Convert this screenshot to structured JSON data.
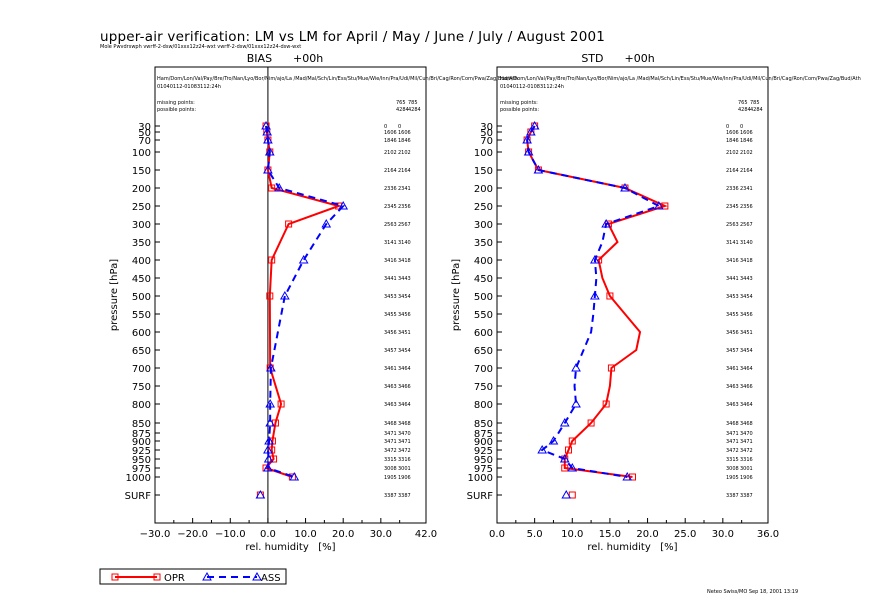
{
  "header": {
    "title": "upper-air verification: LM vs LM for April / May / June / July / August 2001",
    "subtitle": "Mole Pwvdrswph vwrff-2-dsw/01xxx12z24-wxt vwrff-2-dsw/01xxx12z24-dsw-wxt"
  },
  "footer": "Neteo Swiss/MO Sep 18, 2001 13:19",
  "legend": [
    {
      "label": "OPR",
      "color": "#ff0000",
      "marker": "square",
      "dash": "solid"
    },
    {
      "label": "ASS",
      "color": "#0000ff",
      "marker": "triangle",
      "dash": "dashed"
    }
  ],
  "chart_data": [
    {
      "type": "line",
      "title": "BIAS      +00h",
      "xlabel": "rel. humidity   [%]",
      "ylabel": "pressure  [hPa]",
      "xlim": [
        -30,
        42
      ],
      "xticks": [
        "−30.0",
        "−20.0",
        "−10.0",
        "0.0",
        "10.0",
        "20.0",
        "30.0",
        "42.0"
      ],
      "xtick_values": [
        -30,
        -20,
        -10,
        0,
        10,
        20,
        30,
        42
      ],
      "zero_line": true,
      "stations": "Ham/Dom/Lon/Val/Pay/Bre/Tro/Nan/Lyo/Bor/Nim/ajo/La /Mad/Mal/Sch/Lin/Ess/Stu/Mue/Wie/Inn/Pra/Udi/Mil/Cun/Bri/Cag/Ron/Com/Pwa/Zag/Bud/Ath",
      "period": "01040112-01083112:24h",
      "missing_label": "missing points:",
      "possible_label": "possible points:",
      "missing": [
        "765",
        "785"
      ],
      "possible": [
        "4284",
        "4284"
      ],
      "levels": [
        "30",
        "50",
        "70",
        "100",
        "150",
        "200",
        "250",
        "300",
        "350",
        "400",
        "450",
        "500",
        "550",
        "600",
        "650",
        "700",
        "750",
        "800",
        "850",
        "875",
        "900",
        "925",
        "950",
        "975",
        "1000",
        "SURF"
      ],
      "counts": [
        [
          "0",
          "0"
        ],
        [
          "1606",
          "1606"
        ],
        [
          "1846",
          "1846"
        ],
        [
          "2102",
          "2102"
        ],
        [
          "2164",
          "2164"
        ],
        [
          "2336",
          "2341"
        ],
        [
          "2345",
          "2356"
        ],
        [
          "2563",
          "2567"
        ],
        [
          "3141",
          "3140"
        ],
        [
          "3416",
          "3418"
        ],
        [
          "3441",
          "3443"
        ],
        [
          "3453",
          "3454"
        ],
        [
          "3455",
          "3456"
        ],
        [
          "3456",
          "3451"
        ],
        [
          "3457",
          "3454"
        ],
        [
          "3461",
          "3464"
        ],
        [
          "3463",
          "3466"
        ],
        [
          "3463",
          "3464"
        ],
        [
          "3468",
          "3468"
        ],
        [
          "3471",
          "3470"
        ],
        [
          "3471",
          "3471"
        ],
        [
          "3472",
          "3472"
        ],
        [
          "3315",
          "3316"
        ],
        [
          "3008",
          "3001"
        ],
        [
          "1905",
          "1906"
        ],
        [
          "3387",
          "3387"
        ]
      ],
      "series": [
        {
          "name": "OPR",
          "levels": [
            "30",
            "50",
            "70",
            "100",
            "150",
            "200",
            "250",
            "300",
            "400",
            "500",
            "700",
            "800",
            "850",
            "900",
            "925",
            "950",
            "975",
            "1000",
            "SURF"
          ],
          "values": [
            -0.5,
            -0.3,
            0.0,
            0.5,
            0.0,
            1.0,
            18.8,
            5.5,
            1.0,
            0.5,
            0.6,
            3.5,
            2.0,
            1.2,
            1.0,
            1.5,
            -0.5,
            6.5,
            -2.0
          ]
        },
        {
          "name": "ASS",
          "levels": [
            "30",
            "50",
            "70",
            "100",
            "150",
            "200",
            "250",
            "300",
            "400",
            "500",
            "700",
            "800",
            "850",
            "900",
            "925",
            "950",
            "975",
            "1000",
            "SURF"
          ],
          "values": [
            -0.5,
            -0.2,
            0.0,
            0.5,
            0.0,
            3.0,
            20.0,
            15.5,
            9.5,
            4.5,
            0.8,
            0.6,
            0.6,
            0.3,
            0.0,
            0.2,
            0.0,
            7.0,
            -2.0
          ]
        }
      ]
    },
    {
      "type": "line",
      "title": "STD      +00h",
      "xlabel": "rel. humidity   [%]",
      "ylabel": "pressure  [hPa]",
      "xlim": [
        0,
        36
      ],
      "xticks": [
        "0.0",
        "5.0",
        "10.0",
        "15.0",
        "20.0",
        "25.0",
        "30.0",
        "36.0"
      ],
      "xtick_values": [
        0,
        5,
        10,
        15,
        20,
        25,
        30,
        36
      ],
      "zero_line": false,
      "stations": "Ham/Dom/Lon/Val/Pay/Bre/Tro/Nan/Lyo/Bor/Nim/ajo/La /Mad/Mal/Sch/Lin/Ess/Stu/Mue/Wie/Inn/Pra/Udi/Mil/Cun/Bri/Cag/Ron/Com/Pwa/Zag/Bud/Ath",
      "period": "01040112-01083112:24h",
      "missing_label": "missing points:",
      "possible_label": "possible points:",
      "missing": [
        "765",
        "785"
      ],
      "possible": [
        "4284",
        "4284"
      ],
      "levels": [
        "30",
        "50",
        "70",
        "100",
        "150",
        "200",
        "250",
        "300",
        "350",
        "400",
        "450",
        "500",
        "550",
        "600",
        "650",
        "700",
        "750",
        "800",
        "850",
        "875",
        "900",
        "925",
        "950",
        "975",
        "1000",
        "SURF"
      ],
      "counts": [
        [
          "0",
          "0"
        ],
        [
          "1606",
          "1606"
        ],
        [
          "1846",
          "1846"
        ],
        [
          "2102",
          "2102"
        ],
        [
          "2164",
          "2164"
        ],
        [
          "2336",
          "2341"
        ],
        [
          "2345",
          "2356"
        ],
        [
          "2563",
          "2567"
        ],
        [
          "3141",
          "3140"
        ],
        [
          "3416",
          "3418"
        ],
        [
          "3441",
          "3443"
        ],
        [
          "3453",
          "3454"
        ],
        [
          "3455",
          "3456"
        ],
        [
          "3456",
          "3451"
        ],
        [
          "3457",
          "3454"
        ],
        [
          "3461",
          "3464"
        ],
        [
          "3463",
          "3466"
        ],
        [
          "3463",
          "3464"
        ],
        [
          "3468",
          "3468"
        ],
        [
          "3471",
          "3470"
        ],
        [
          "3471",
          "3471"
        ],
        [
          "3472",
          "3472"
        ],
        [
          "3315",
          "3316"
        ],
        [
          "3008",
          "3001"
        ],
        [
          "1905",
          "1906"
        ],
        [
          "3387",
          "3387"
        ]
      ],
      "series": [
        {
          "name": "OPR",
          "levels": [
            "30",
            "50",
            "70",
            "100",
            "150",
            "200",
            "250",
            "300",
            "350",
            "400",
            "450",
            "500",
            "550",
            "600",
            "650",
            "700",
            "750",
            "800",
            "850",
            "900",
            "925",
            "950",
            "975",
            "1000",
            "SURF"
          ],
          "values": [
            5.0,
            4.5,
            4.0,
            4.2,
            5.5,
            17.0,
            22.3,
            14.8,
            16.0,
            13.5,
            14.0,
            15.0,
            17.0,
            19.0,
            18.5,
            15.2,
            15.0,
            14.5,
            12.5,
            10.0,
            9.5,
            9.0,
            9.0,
            18.0,
            10.0
          ]
        },
        {
          "name": "ASS",
          "levels": [
            "30",
            "50",
            "70",
            "100",
            "150",
            "200",
            "250",
            "300",
            "350",
            "400",
            "450",
            "500",
            "550",
            "600",
            "650",
            "700",
            "750",
            "800",
            "850",
            "900",
            "925",
            "950",
            "975",
            "1000",
            "SURF"
          ],
          "values": [
            5.0,
            4.5,
            4.0,
            4.2,
            5.5,
            17.0,
            21.5,
            14.5,
            14.0,
            13.0,
            13.2,
            13.0,
            12.8,
            12.5,
            11.5,
            10.5,
            10.3,
            10.5,
            9.0,
            7.5,
            6.0,
            9.0,
            10.0,
            17.3,
            9.2
          ]
        }
      ]
    }
  ]
}
